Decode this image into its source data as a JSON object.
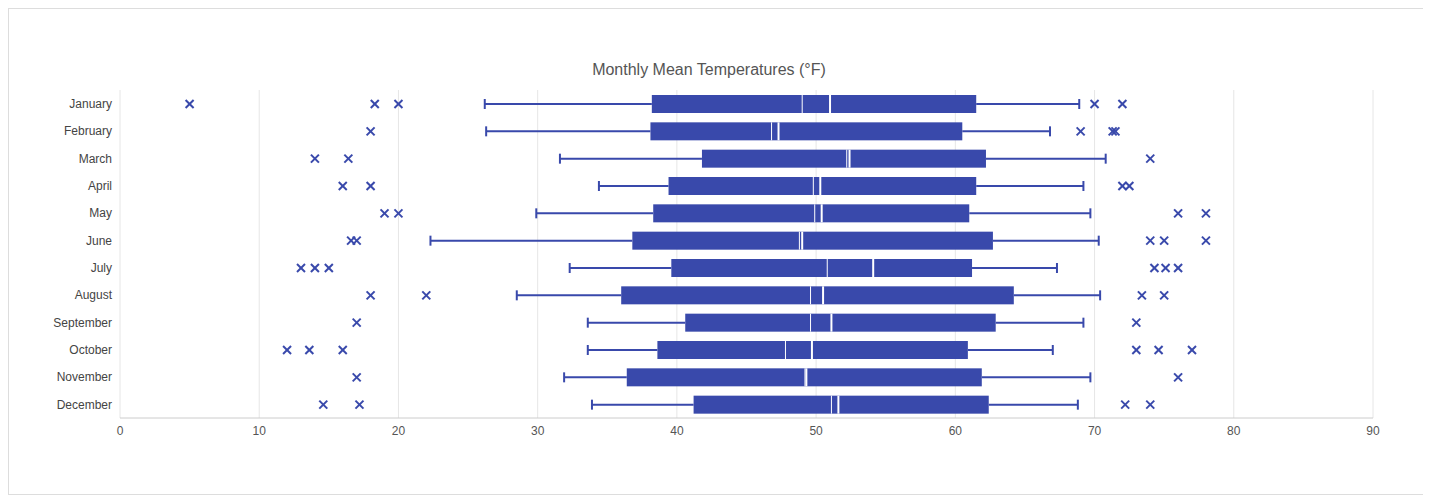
{
  "chart_data": {
    "type": "boxplot",
    "title": "Monthly Mean Temperatures (°F)",
    "orientation": "horizontal",
    "categories": [
      "January",
      "February",
      "March",
      "April",
      "May",
      "June",
      "July",
      "August",
      "September",
      "October",
      "November",
      "December"
    ],
    "whisker_low": [
      26.2,
      26.3,
      31.6,
      34.4,
      29.9,
      22.3,
      32.3,
      28.5,
      33.6,
      33.6,
      31.9,
      33.9
    ],
    "q1": [
      38.2,
      38.1,
      41.8,
      39.4,
      38.3,
      36.8,
      39.6,
      36.0,
      40.6,
      38.6,
      36.4,
      41.2
    ],
    "mean": [
      49.0,
      46.8,
      52.2,
      49.8,
      49.9,
      48.8,
      50.8,
      49.6,
      49.6,
      47.8,
      49.2,
      51.1
    ],
    "median": [
      51.0,
      47.3,
      52.4,
      50.3,
      50.4,
      49.0,
      54.1,
      50.5,
      51.1,
      49.7,
      49.3,
      51.6
    ],
    "q3": [
      61.5,
      60.5,
      62.2,
      61.5,
      61.0,
      62.7,
      61.2,
      64.2,
      62.9,
      60.9,
      61.9,
      62.4
    ],
    "whisker_high": [
      68.9,
      66.8,
      70.8,
      69.2,
      69.7,
      70.3,
      67.3,
      70.4,
      69.2,
      67.0,
      69.7,
      68.8
    ],
    "outliers": [
      [
        5,
        18.3,
        20,
        70,
        72
      ],
      [
        18,
        69,
        71.3,
        71.5
      ],
      [
        14,
        16.4,
        74
      ],
      [
        16,
        18,
        72,
        72.5
      ],
      [
        19,
        20,
        76,
        78
      ],
      [
        16.6,
        17,
        74,
        75,
        78
      ],
      [
        13,
        14,
        15,
        74.3,
        75.1,
        76
      ],
      [
        18,
        22,
        73.4,
        75
      ],
      [
        17,
        73
      ],
      [
        12,
        13.6,
        16,
        73,
        74.6,
        77
      ],
      [
        17,
        76
      ],
      [
        14.6,
        17.2,
        72.2,
        74
      ]
    ],
    "color": "#3949ab",
    "marker": "x",
    "xlim": [
      0,
      90
    ],
    "xticks": [
      0,
      10,
      20,
      30,
      40,
      50,
      60,
      70,
      80,
      90
    ],
    "grid": true
  }
}
